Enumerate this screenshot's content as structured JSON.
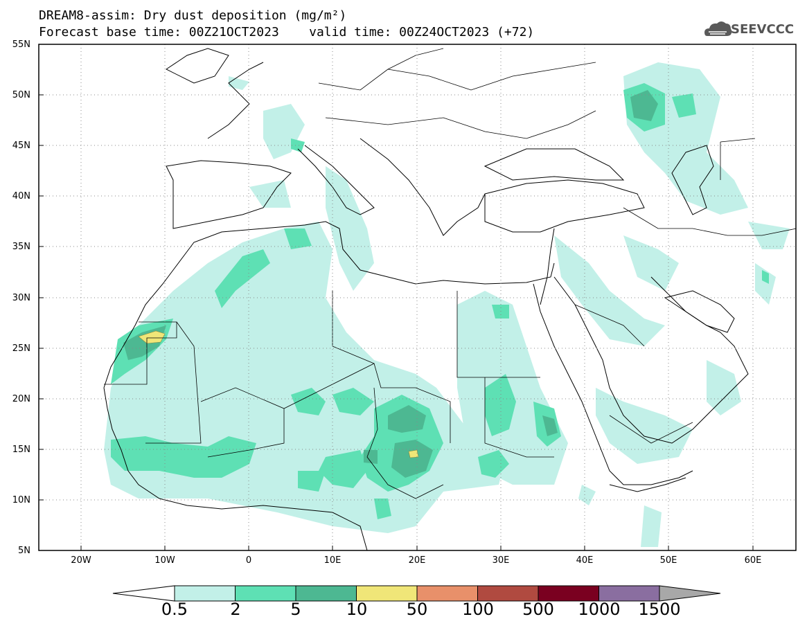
{
  "header": {
    "line1": "DREAM8-assim: Dry dust deposition (mg/m²)",
    "line2": "Forecast base time: 00Z21OCT2023    valid time: 00Z24OCT2023 (+72)",
    "logo_text": "SEEVCCC",
    "logo_icon": "cloud-icon"
  },
  "map": {
    "projection": "lat-lon",
    "lon_range": [
      -25,
      65
    ],
    "lat_range": [
      5,
      55
    ],
    "lat_ticks": [
      "55N",
      "50N",
      "45N",
      "40N",
      "35N",
      "30N",
      "25N",
      "20N",
      "15N",
      "10N",
      "5N"
    ],
    "lon_ticks": [
      "20W",
      "10W",
      "0",
      "10E",
      "20E",
      "30E",
      "40E",
      "50E",
      "60E"
    ],
    "gridlines": "dotted"
  },
  "colorbar": {
    "labels": [
      "0.5",
      "2",
      "5",
      "10",
      "50",
      "100",
      "500",
      "1000",
      "1500"
    ],
    "colors": [
      "#c2f0e8",
      "#5ee0b4",
      "#4db892",
      "#f0e678",
      "#e8906a",
      "#b04a40",
      "#7a0020",
      "#8a6ea0"
    ],
    "under_color": "#ffffff",
    "over_color": "#a8a8a8"
  }
}
